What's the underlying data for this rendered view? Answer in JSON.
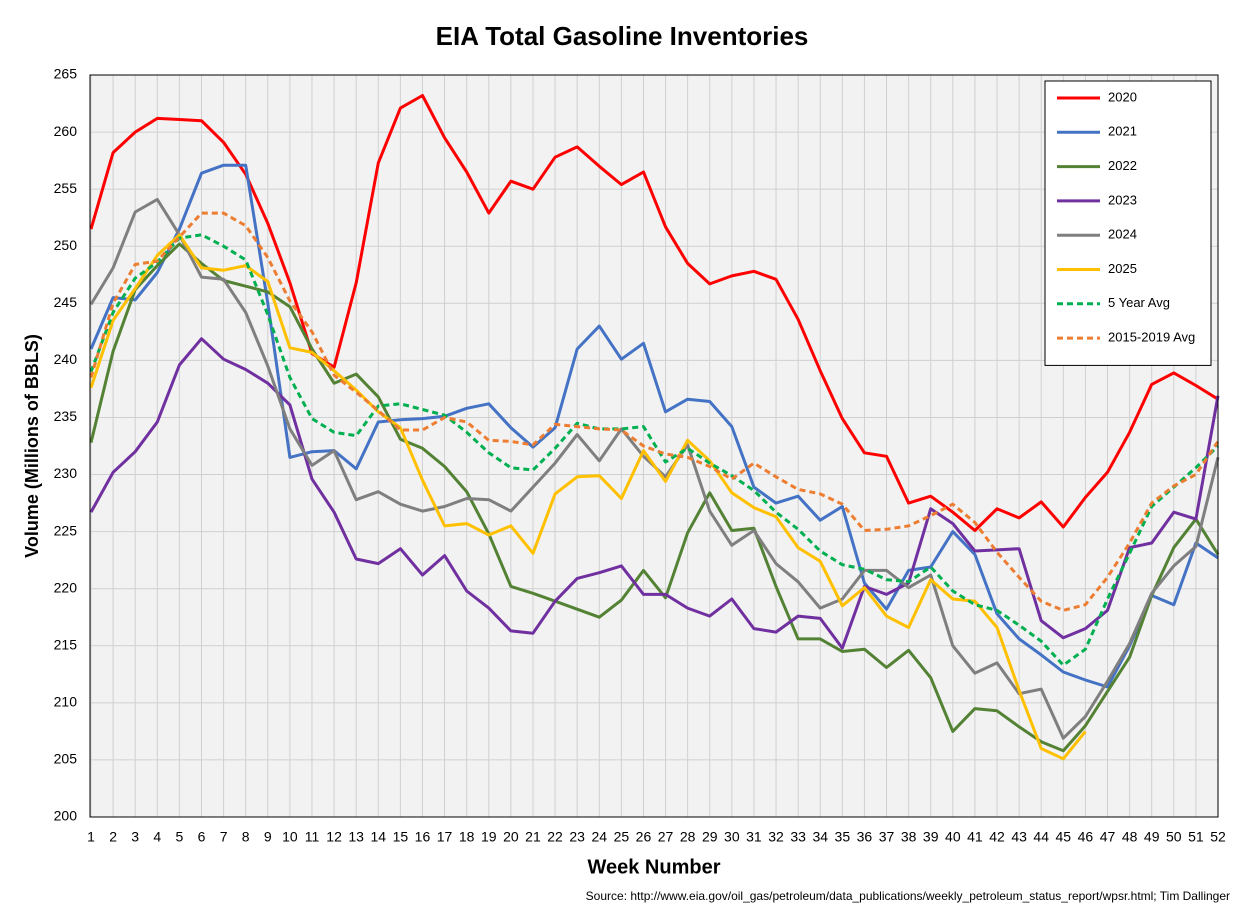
{
  "chart_data": {
    "type": "line",
    "title": "EIA Total Gasoline Inventories",
    "x_label": "Week Number",
    "y_label": "Volume (Millions of BBLS)",
    "source": "Source: http://www.eia.gov/oil_gas/petroleum/data_publications/weekly_petroleum_status_report/wpsr.html; Tim Dallinger",
    "x": [
      1,
      2,
      3,
      4,
      5,
      6,
      7,
      8,
      9,
      10,
      11,
      12,
      13,
      14,
      15,
      16,
      17,
      18,
      19,
      20,
      21,
      22,
      23,
      24,
      25,
      26,
      27,
      28,
      29,
      30,
      31,
      32,
      33,
      34,
      35,
      36,
      37,
      38,
      39,
      40,
      41,
      42,
      43,
      44,
      45,
      46,
      47,
      48,
      49,
      50,
      51,
      52
    ],
    "xlim": [
      1,
      52
    ],
    "xticks": [
      1,
      2,
      3,
      4,
      5,
      6,
      7,
      8,
      9,
      10,
      11,
      12,
      13,
      14,
      15,
      16,
      17,
      18,
      19,
      20,
      21,
      22,
      23,
      24,
      25,
      26,
      27,
      28,
      29,
      30,
      31,
      32,
      33,
      34,
      35,
      36,
      37,
      38,
      39,
      40,
      41,
      42,
      43,
      44,
      45,
      46,
      47,
      48,
      49,
      50,
      51,
      52
    ],
    "ylim": [
      200,
      265
    ],
    "yticks": [
      200,
      205,
      210,
      215,
      220,
      225,
      230,
      235,
      240,
      245,
      250,
      255,
      260,
      265
    ],
    "grid": true,
    "legend": "top-right",
    "series": [
      {
        "name": "2020",
        "color": "#ff0000",
        "dashed": false,
        "values": [
          251.5,
          258.2,
          260,
          261.2,
          261.1,
          261,
          259.1,
          256.3,
          252,
          246.8,
          240.6,
          239.4,
          246.8,
          257.3,
          262.1,
          263.2,
          259.5,
          256.5,
          252.9,
          255.7,
          255,
          257.8,
          258.7,
          257,
          255.4,
          256.5,
          251.7,
          248.5,
          246.7,
          247.4,
          247.8,
          247.1,
          243.6,
          239.1,
          234.9,
          231.9,
          231.6,
          227.5,
          228.1,
          226.7,
          225.1,
          227,
          226.2,
          227.6,
          225.4,
          228,
          230.2,
          233.7,
          237.9,
          238.9,
          237.8,
          236.6
        ]
      },
      {
        "name": "2021",
        "color": "#4472c4",
        "dashed": false,
        "values": [
          241,
          245.5,
          245.3,
          247.7,
          251.5,
          256.4,
          257.1,
          257.1,
          245,
          231.5,
          232,
          232.1,
          230.5,
          234.6,
          234.8,
          234.9,
          235.1,
          235.8,
          236.2,
          234.1,
          232.4,
          234.1,
          241,
          243,
          240.1,
          241.5,
          235.5,
          236.6,
          236.4,
          234.2,
          228.9,
          227.5,
          228.1,
          226,
          227.2,
          220.5,
          218.2,
          221.6,
          221.9,
          225,
          223,
          217.8,
          215.6,
          214.2,
          212.7,
          212,
          211.4,
          215,
          219.4,
          218.6,
          224,
          222.7
        ]
      },
      {
        "name": "2022",
        "color": "#548235",
        "dashed": false,
        "values": [
          232.8,
          240.8,
          246.2,
          248.3,
          250.2,
          248.5,
          247,
          246.5,
          246,
          244.7,
          241,
          238,
          238.8,
          236.8,
          233.1,
          232.3,
          230.7,
          228.5,
          224.8,
          220.2,
          219.6,
          218.9,
          218.2,
          217.5,
          219,
          221.6,
          219.2,
          224.9,
          228.4,
          225.1,
          225.3,
          220.2,
          215.6,
          215.6,
          214.5,
          214.7,
          213.1,
          214.6,
          212.2,
          207.5,
          209.5,
          209.3,
          207.9,
          206.6,
          205.8,
          208,
          211,
          214,
          219.4,
          223.6,
          226.1,
          223
        ]
      },
      {
        "name": "2023",
        "color": "#7030a0",
        "dashed": false,
        "values": [
          226.7,
          230.2,
          232,
          234.6,
          239.6,
          241.9,
          240.1,
          239.2,
          238,
          236.1,
          229.6,
          226.7,
          222.6,
          222.2,
          223.5,
          221.2,
          222.9,
          219.8,
          218.3,
          216.3,
          216.1,
          218.9,
          220.9,
          221.4,
          222,
          219.5,
          219.5,
          218.3,
          217.6,
          219.1,
          216.5,
          216.2,
          217.6,
          217.4,
          214.8,
          220.2,
          219.5,
          220.5,
          227,
          225.7,
          223.3,
          223.4,
          223.5,
          217.2,
          215.7,
          216.5,
          218.1,
          223.6,
          224,
          226.7,
          226.1,
          236.9
        ]
      },
      {
        "name": "2024",
        "color": "#7f7f7f",
        "dashed": false,
        "values": [
          244.9,
          248.1,
          253,
          254.1,
          251,
          247.3,
          247.1,
          244.2,
          239.5,
          234,
          230.8,
          232.1,
          227.8,
          228.5,
          227.4,
          226.8,
          227.2,
          227.9,
          227.8,
          226.8,
          228.9,
          231,
          233.5,
          231.2,
          234,
          231.6,
          229.8,
          232.6,
          226.8,
          223.8,
          225.1,
          222.2,
          220.6,
          218.3,
          219.1,
          221.6,
          221.6,
          220.1,
          221.2,
          215,
          212.6,
          213.5,
          210.8,
          211.2,
          206.9,
          208.8,
          211.9,
          215.2,
          219.6,
          222,
          223.7,
          231.5
        ]
      },
      {
        "name": "2025",
        "color": "#ffc000",
        "dashed": false,
        "values": [
          237.6,
          243.5,
          246.3,
          249.2,
          251,
          248.1,
          247.9,
          248.3,
          246.9,
          241.1,
          240.7,
          239.1,
          237.4,
          235.5,
          234.1,
          229.5,
          225.5,
          225.7,
          224.7,
          225.5,
          223.1,
          228.3,
          229.8,
          229.9,
          227.9,
          232.1,
          229.4,
          233,
          231.2,
          228.4,
          227.1,
          226.3,
          223.6,
          222.4,
          218.5,
          220.1,
          217.6,
          216.6,
          220.8,
          219.1,
          218.9,
          216.6,
          211.1,
          206,
          205.1,
          207.5,
          null,
          null,
          null,
          null,
          null,
          null
        ]
      },
      {
        "name": "5 Year Avg",
        "color": "#00b050",
        "dashed": true,
        "values": [
          239,
          244.2,
          247.2,
          248.6,
          250.7,
          251,
          250,
          248.8,
          244,
          238.5,
          234.9,
          233.7,
          233.4,
          236,
          236.2,
          235.7,
          235.2,
          233.7,
          231.9,
          230.6,
          230.4,
          232.3,
          234.5,
          234,
          234,
          234.2,
          231.1,
          232.3,
          231,
          229.9,
          228.6,
          226.7,
          225.2,
          223.3,
          222.1,
          221.7,
          220.8,
          220.6,
          221.9,
          219.8,
          218.6,
          218.1,
          216.8,
          215.4,
          213.3,
          214.7,
          219.1,
          223.1,
          227.2,
          228.9,
          230.6,
          232.5
        ]
      },
      {
        "name": "2015-2019 Avg",
        "color": "#ed7d31",
        "dashed": true,
        "values": [
          238.5,
          245,
          248.4,
          248.7,
          250.8,
          252.9,
          252.9,
          251.8,
          249,
          245.2,
          242.5,
          238.7,
          237.2,
          235.6,
          233.9,
          233.9,
          235,
          234.6,
          233,
          232.9,
          232.6,
          234.4,
          234.2,
          234,
          233.9,
          232.5,
          231.8,
          231.5,
          230.7,
          229.6,
          231,
          229.8,
          228.7,
          228.3,
          227.4,
          225.1,
          225.2,
          225.5,
          226.4,
          227.4,
          225.8,
          223.2,
          221,
          218.9,
          218.1,
          218.6,
          221,
          224,
          227.5,
          229,
          230,
          232.9
        ]
      }
    ]
  }
}
